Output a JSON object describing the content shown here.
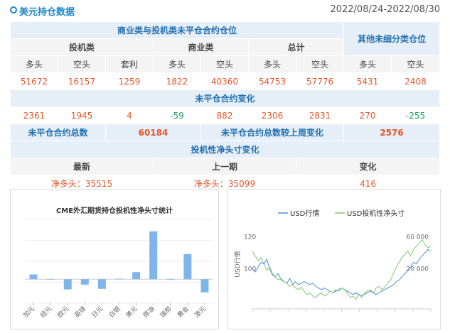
{
  "header": {
    "title": "美元持仓数据",
    "date_range": "2022/08/24-2022/08/30"
  },
  "table": {
    "group_title": "商业类与投机类未平仓合约仓位",
    "other_title": "其他未细分类仓位",
    "sub_headers": [
      "投机类",
      "商业类",
      "总计"
    ],
    "col_labels": [
      "多头",
      "空头",
      "套利",
      "多头",
      "空头",
      "多头",
      "空头",
      "多头",
      "空头"
    ],
    "positions": [
      "51672",
      "16157",
      "1259",
      "1822",
      "40360",
      "54753",
      "57776",
      "5431",
      "2408"
    ],
    "change_title": "未平仓合约变化",
    "changes": [
      "2361",
      "1945",
      "4",
      "-59",
      "882",
      "2306",
      "2831",
      "270",
      "-255"
    ],
    "oi_total_label": "未平仓合约总数",
    "oi_total_value": "60184",
    "oi_change_label": "未平仓合约总数较上周变化",
    "oi_change_value": "2576",
    "net_title": "投机性净头寸变化",
    "net_headers": [
      "最新",
      "上一期",
      "变化"
    ],
    "net_latest": "净多头：35515",
    "net_prev": "净多头：35099",
    "net_change": "416"
  },
  "chart_data": [
    {
      "type": "bar",
      "title": "CME外汇期货持仓投机性净头寸统计",
      "categories": [
        "加元",
        "纽元",
        "欧元",
        "英镑",
        "日元",
        "白银",
        "美元",
        "原油",
        "瑞郎",
        "黄金",
        "澳元"
      ],
      "values": [
        8,
        0,
        -17,
        -9,
        -16,
        1,
        12,
        80,
        -1,
        42,
        -22
      ],
      "ylim": [
        -40,
        100
      ],
      "bar_color": "#7fb6ea"
    },
    {
      "type": "line",
      "series": [
        {
          "name": "USD行情",
          "axis": "left",
          "color": "#4a90d9",
          "values": [
            100,
            98,
            101,
            104,
            103,
            106,
            100,
            96,
            95,
            97,
            93,
            92,
            91,
            94,
            90,
            92,
            90,
            91,
            92,
            91,
            90,
            91,
            89,
            88,
            87,
            88,
            87,
            86,
            85,
            86,
            87,
            88,
            87,
            86,
            85,
            84,
            85,
            84,
            83,
            84,
            85,
            86,
            85,
            84,
            85,
            86,
            87,
            88,
            89,
            90,
            92,
            93,
            95,
            97,
            99,
            101,
            104,
            103,
            106,
            108,
            110,
            112,
            111
          ]
        },
        {
          "name": "USD投机性净头寸",
          "axis": "right",
          "color": "#7ec86e",
          "values": [
            42000,
            36000,
            30000,
            34000,
            26000,
            18000,
            22000,
            14000,
            10000,
            6000,
            8000,
            4000,
            2000,
            -2000,
            0,
            -4000,
            -6000,
            -3000,
            -8000,
            -12000,
            -10000,
            -14000,
            -16000,
            -12000,
            -10000,
            -14000,
            -12000,
            -8000,
            -10000,
            -6000,
            -8000,
            -4000,
            -6000,
            -10000,
            -16000,
            -14000,
            -18000,
            -12000,
            -16000,
            -10000,
            -8000,
            -6000,
            -10000,
            -4000,
            -2000,
            -6000,
            -3000,
            2000,
            6000,
            14000,
            22000,
            28000,
            34000,
            38000,
            42000,
            36000,
            44000,
            48000,
            52000,
            56000,
            50000,
            46000,
            48000
          ]
        }
      ],
      "left_ticks": [
        "120",
        "100"
      ],
      "right_ticks": [
        "60 000",
        "20 000"
      ],
      "ylabel_left": "USD行情"
    }
  ]
}
